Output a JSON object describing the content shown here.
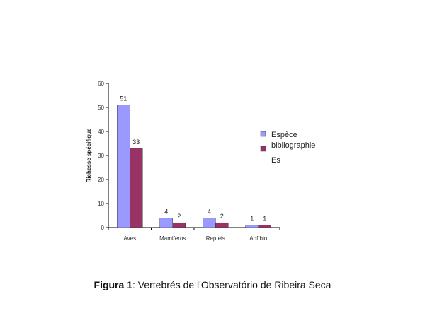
{
  "chart_data": {
    "type": "bar",
    "categories": [
      "Aves",
      "Mamiferos",
      "Repteis",
      "Anfíbio"
    ],
    "series": [
      {
        "name": "Espèce bibliographie",
        "values": [
          51,
          4,
          4,
          1
        ],
        "color": "#9999ff"
      },
      {
        "name": "Es",
        "values": [
          33,
          2,
          2,
          1
        ],
        "color": "#993366"
      }
    ],
    "data_labels": [
      [
        "51",
        "4",
        "4",
        "1"
      ],
      [
        "33",
        "2",
        "2",
        "1"
      ]
    ],
    "ylabel": "Richesse spécifique",
    "xlabel": "",
    "ylim": [
      0,
      60
    ],
    "yticks": [
      0,
      10,
      20,
      30,
      40,
      50,
      60
    ],
    "grid": false,
    "legend": "right",
    "legend_lines": [
      "Espèce",
      "bibliographie",
      "Es"
    ]
  },
  "caption": {
    "label": "Figura 1",
    "text": ": Vertebrés de l'Observatório de Ribeira Seca"
  }
}
